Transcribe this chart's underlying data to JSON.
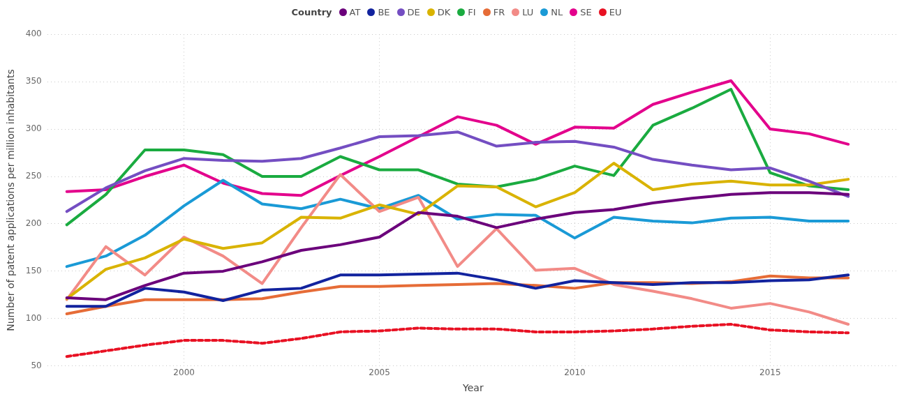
{
  "chart_data": {
    "type": "line",
    "xlabel": "Year",
    "ylabel": "Number of patent applications per million inhabitants",
    "legend_title": "Country",
    "legend": "top",
    "grid": true,
    "marker": "none",
    "line_style": "solid",
    "x": [
      1997,
      1998,
      1999,
      2000,
      2001,
      2002,
      2003,
      2004,
      2005,
      2006,
      2007,
      2008,
      2009,
      2010,
      2011,
      2012,
      2013,
      2014,
      2015,
      2016,
      2017
    ],
    "xlim": [
      1996.5,
      2018.3
    ],
    "xticks": [
      2000,
      2005,
      2010,
      2015
    ],
    "ylim": [
      50,
      400
    ],
    "yticks": [
      50,
      100,
      150,
      200,
      250,
      300,
      350,
      400
    ],
    "series": [
      {
        "name": "AT",
        "color": "#6b007b",
        "values": [
          122,
          120,
          135,
          148,
          150,
          160,
          172,
          178,
          186,
          212,
          208,
          196,
          205,
          212,
          215,
          222,
          227,
          231,
          233,
          233,
          231
        ]
      },
      {
        "name": "BE",
        "color": "#12239e",
        "values": [
          113,
          113,
          132,
          128,
          119,
          130,
          132,
          146,
          146,
          147,
          148,
          141,
          132,
          140,
          138,
          136,
          138,
          138,
          140,
          141,
          146
        ]
      },
      {
        "name": "DE",
        "color": "#744ec2",
        "values": [
          213,
          238,
          256,
          269,
          267,
          266,
          269,
          280,
          292,
          293,
          297,
          282,
          286,
          287,
          281,
          268,
          262,
          257,
          259,
          245,
          229
        ]
      },
      {
        "name": "DK",
        "color": "#d9b300",
        "values": [
          121,
          152,
          164,
          184,
          174,
          180,
          207,
          206,
          220,
          210,
          240,
          239,
          218,
          233,
          264,
          236,
          242,
          245,
          241,
          241,
          247
        ]
      },
      {
        "name": "FI",
        "color": "#1aab40",
        "values": [
          199,
          231,
          278,
          278,
          273,
          250,
          250,
          271,
          257,
          257,
          242,
          239,
          247,
          261,
          251,
          304,
          322,
          342,
          254,
          240,
          236
        ]
      },
      {
        "name": "FR",
        "color": "#e66c37",
        "values": [
          105,
          113,
          120,
          120,
          120,
          121,
          128,
          134,
          134,
          135,
          136,
          137,
          135,
          132,
          138,
          138,
          137,
          139,
          145,
          143,
          143
        ]
      },
      {
        "name": "LU",
        "color": "#f28b87",
        "values": [
          120,
          176,
          146,
          186,
          166,
          137,
          196,
          252,
          213,
          228,
          155,
          195,
          151,
          153,
          136,
          129,
          121,
          111,
          116,
          107,
          94
        ]
      },
      {
        "name": "NL",
        "color": "#1a9ad6",
        "values": [
          155,
          166,
          188,
          219,
          246,
          221,
          216,
          226,
          216,
          230,
          205,
          210,
          209,
          185,
          207,
          203,
          201,
          206,
          207,
          203,
          203
        ]
      },
      {
        "name": "SE",
        "color": "#e3008c",
        "values": [
          234,
          236,
          250,
          262,
          243,
          232,
          230,
          251,
          271,
          292,
          313,
          304,
          284,
          302,
          301,
          326,
          339,
          351,
          300,
          295,
          284
        ]
      },
      {
        "name": "EU",
        "color": "#e81123",
        "line_style": "dashed",
        "values": [
          60,
          66,
          72,
          77,
          77,
          74,
          79,
          86,
          87,
          90,
          89,
          89,
          86,
          86,
          87,
          89,
          92,
          94,
          88,
          86,
          85
        ]
      }
    ]
  }
}
